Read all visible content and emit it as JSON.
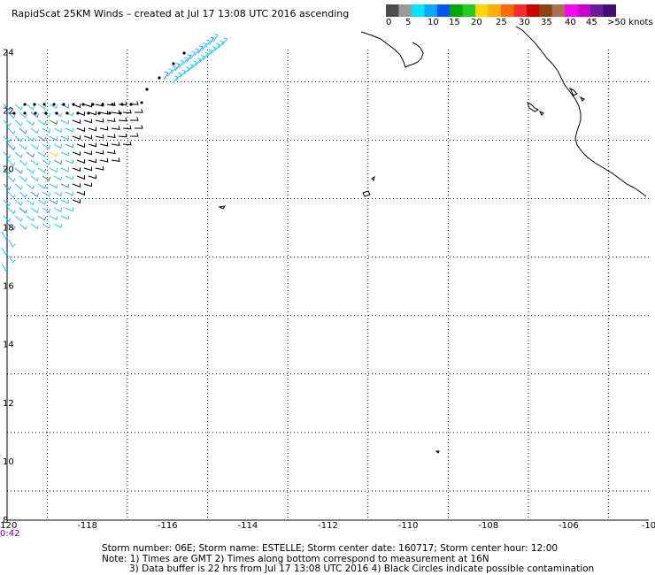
{
  "title": "RapidScat 25KM Winds – created at Jul 17 13:08 UTC 2016 ascending",
  "colorbar": {
    "colors": [
      "#4d4d4d",
      "#9a9a9a",
      "#00e5ff",
      "#00aaff",
      "#0055ff",
      "#00aa00",
      "#22cc22",
      "#ffd400",
      "#ffaa00",
      "#ff6a00",
      "#ff2a2a",
      "#cc0000",
      "#8b4513",
      "#b07050",
      "#ff00ff",
      "#cc00cc",
      "#6a1b9a",
      "#3f0f78"
    ],
    "tick_labels": [
      "0",
      "5",
      "10",
      "15",
      "20",
      "25",
      "30",
      "35",
      "40",
      "45",
      ">50 knots"
    ]
  },
  "map": {
    "x_tick_labels": [
      "-120",
      "-118",
      "-116",
      "-114",
      "-112",
      "-110",
      "-108",
      "-106",
      "-10"
    ],
    "y_tick_labels": [
      "24",
      "22",
      "20",
      "18",
      "16",
      "14",
      "12",
      "10",
      "8"
    ],
    "lon_range": [
      -120,
      -104
    ],
    "lat_range": [
      8,
      24.1
    ]
  },
  "time_label": "0:42",
  "footer": {
    "line1": "Storm number: 06E;  Storm name: ESTELLE;  Storm center date: 160717;  Storm center hour: 12:00",
    "line2": "Note: 1) Times are GMT  2) Times along bottom correspond to measurement at 16N",
    "line3": "3) Data buffer is 22 hrs from Jul 17 13:08 UTC 2016   4) Black Circles indicate possible contamination"
  }
}
